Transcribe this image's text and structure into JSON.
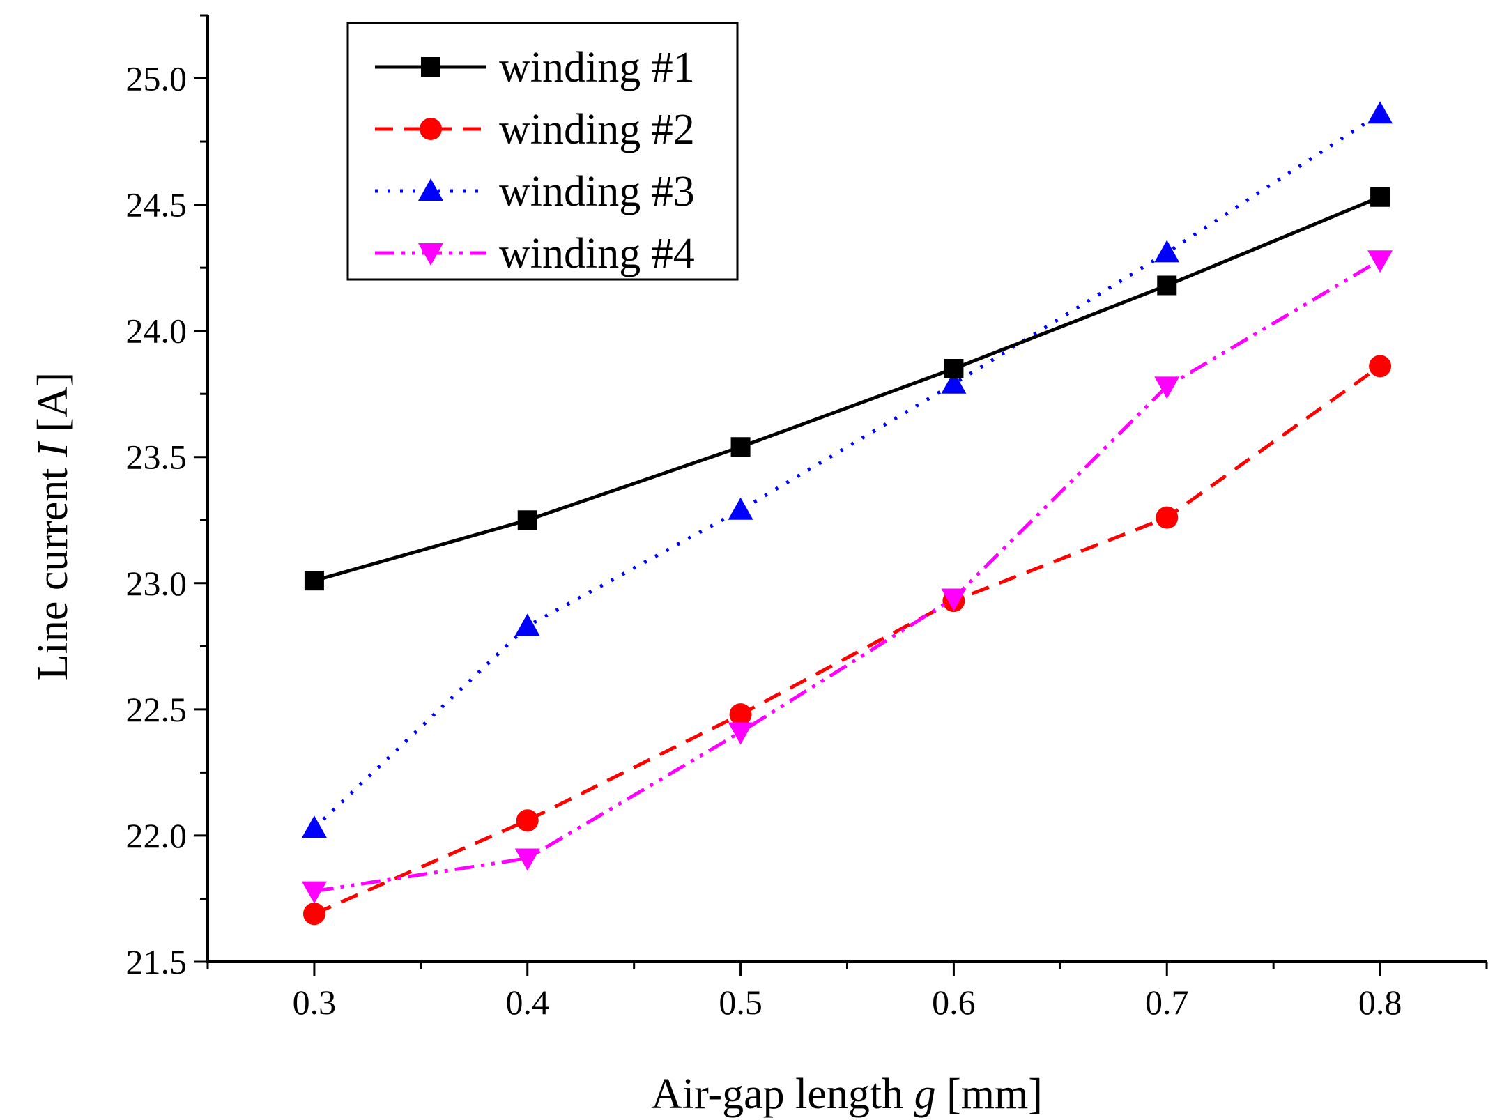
{
  "chart_data": {
    "type": "line",
    "title": "",
    "xlabel": {
      "prefix": "Air-gap length ",
      "symbol": "g",
      "suffix": " [mm]"
    },
    "ylabel": {
      "prefix": "Line current ",
      "symbol": "I",
      "suffix": " [A]"
    },
    "xlim": [
      0.25,
      0.85
    ],
    "ylim": [
      21.5,
      25.25
    ],
    "x": [
      0.3,
      0.4,
      0.5,
      0.6,
      0.7,
      0.8
    ],
    "xticks": [
      "0.3",
      "0.4",
      "0.5",
      "0.6",
      "0.7",
      "0.8"
    ],
    "xtick_values": [
      0.3,
      0.4,
      0.5,
      0.6,
      0.7,
      0.8
    ],
    "xminor_ticks": [
      0.25,
      0.35,
      0.45,
      0.55,
      0.65,
      0.75,
      0.85
    ],
    "yticks": [
      "21.5",
      "22.0",
      "22.5",
      "23.0",
      "23.5",
      "24.0",
      "24.5",
      "25.0"
    ],
    "ytick_values": [
      21.5,
      22.0,
      22.5,
      23.0,
      23.5,
      24.0,
      24.5,
      25.0
    ],
    "yminor_ticks": [
      21.75,
      22.25,
      22.75,
      23.25,
      23.75,
      24.25,
      24.75,
      25.25
    ],
    "grid": false,
    "legend_position": "top-left",
    "series": [
      {
        "name": "winding #1",
        "values": [
          23.01,
          23.25,
          23.54,
          23.85,
          24.18,
          24.53
        ],
        "color": "#000000",
        "line_style": "solid",
        "marker": "square"
      },
      {
        "name": "winding #2",
        "values": [
          21.69,
          22.06,
          22.48,
          22.93,
          23.26,
          23.86
        ],
        "color": "#ff0000",
        "line_style": "dash",
        "marker": "circle"
      },
      {
        "name": "winding #3",
        "values": [
          22.03,
          22.83,
          23.29,
          23.79,
          24.31,
          24.86
        ],
        "color": "#0000ff",
        "line_style": "dot",
        "marker": "triangle-up"
      },
      {
        "name": "winding #4",
        "values": [
          21.78,
          21.91,
          22.41,
          22.94,
          23.78,
          24.28
        ],
        "color": "#ff00ff",
        "line_style": "dash-dot-dot",
        "marker": "triangle-down"
      }
    ]
  }
}
